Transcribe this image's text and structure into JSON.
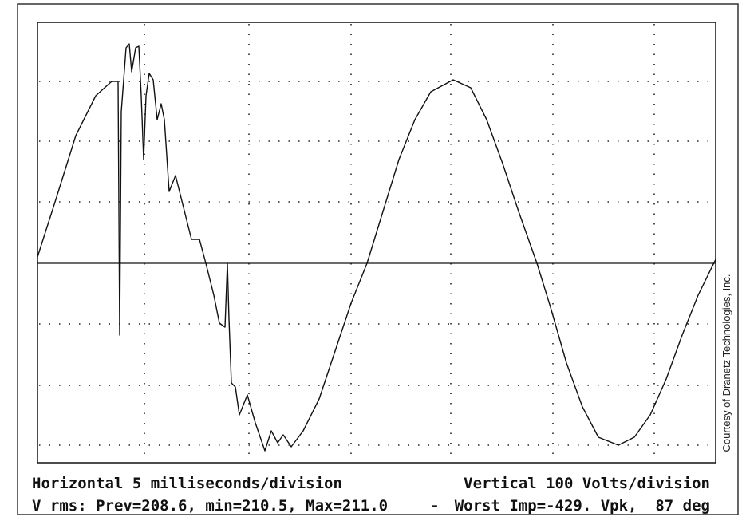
{
  "readout": {
    "horizontal": "Horizontal 5 milliseconds/division",
    "vertical": "Vertical 100 Volts/division",
    "rms": "V rms: Prev=208.6, min=210.5, Max=211.0",
    "separator": "-",
    "impulse": "Worst Imp=-429. Vpk,  87 deg"
  },
  "credit": "Courtesy of Dranetz Technologies, Inc."
}
